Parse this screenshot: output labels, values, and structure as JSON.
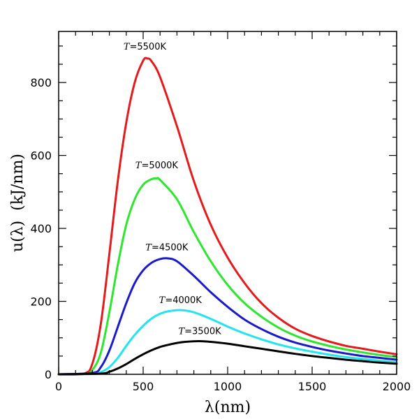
{
  "chart_data": {
    "type": "line",
    "xlabel": "λ(nm)",
    "ylabel": "u(λ)  (kJ/nm)",
    "xlim": [
      0,
      2000
    ],
    "ylim": [
      0,
      940
    ],
    "x_ticks": [
      0,
      500,
      1000,
      1500,
      2000
    ],
    "y_ticks": [
      0,
      200,
      400,
      600,
      800
    ],
    "grid": false,
    "legend": "none",
    "series": [
      {
        "label_var": "T",
        "label_value": "=5500K",
        "color": "#e41a1c",
        "x": [
          0,
          150,
          200,
          250,
          300,
          350,
          400,
          450,
          500,
          525,
          550,
          600,
          700,
          800,
          900,
          1000,
          1100,
          1200,
          1300,
          1400,
          1500,
          1600,
          1700,
          1800,
          1900,
          2000
        ],
        "y": [
          0,
          2,
          30,
          140,
          330,
          530,
          690,
          800,
          860,
          866,
          858,
          815,
          680,
          530,
          410,
          320,
          250,
          195,
          155,
          125,
          105,
          90,
          78,
          70,
          62,
          55
        ]
      },
      {
        "label_var": "T",
        "label_value": "=5000K",
        "color": "#2ee62e",
        "x": [
          0,
          150,
          200,
          250,
          300,
          350,
          400,
          450,
          500,
          550,
          580,
          600,
          700,
          800,
          900,
          1000,
          1100,
          1200,
          1300,
          1400,
          1500,
          1600,
          1700,
          1800,
          1900,
          2000
        ],
        "y": [
          0,
          1,
          12,
          60,
          170,
          300,
          410,
          480,
          520,
          535,
          537,
          533,
          480,
          390,
          310,
          245,
          195,
          158,
          128,
          106,
          90,
          78,
          68,
          60,
          53,
          47
        ]
      },
      {
        "label_var": "T",
        "label_value": "=4500K",
        "color": "#1a1acc",
        "x": [
          0,
          200,
          250,
          300,
          350,
          400,
          450,
          500,
          550,
          600,
          644,
          700,
          800,
          900,
          1000,
          1100,
          1200,
          1300,
          1400,
          1500,
          1600,
          1700,
          1800,
          1900,
          2000
        ],
        "y": [
          0,
          4,
          20,
          65,
          130,
          195,
          250,
          285,
          306,
          316,
          318,
          310,
          270,
          225,
          185,
          150,
          124,
          103,
          87,
          75,
          65,
          57,
          50,
          45,
          40
        ]
      },
      {
        "label_var": "T",
        "label_value": "=4000K",
        "color": "#22e5f0",
        "x": [
          0,
          200,
          250,
          300,
          350,
          400,
          450,
          500,
          550,
          600,
          650,
          724,
          800,
          900,
          1000,
          1100,
          1200,
          1300,
          1400,
          1500,
          1600,
          1700,
          1800,
          1900,
          2000
        ],
        "y": [
          0,
          1,
          6,
          20,
          45,
          78,
          108,
          133,
          153,
          166,
          173,
          176,
          170,
          152,
          131,
          112,
          96,
          82,
          71,
          62,
          54,
          47,
          42,
          37,
          33
        ]
      },
      {
        "label_var": "T",
        "label_value": "=3500K",
        "color": "#000000",
        "x": [
          0,
          250,
          300,
          350,
          400,
          450,
          500,
          550,
          600,
          650,
          700,
          750,
          830,
          900,
          1000,
          1100,
          1200,
          1300,
          1400,
          1500,
          1600,
          1700,
          1800,
          1900,
          2000
        ],
        "y": [
          0,
          2,
          7,
          16,
          28,
          42,
          55,
          66,
          75,
          81,
          86,
          89,
          91,
          89,
          84,
          77,
          70,
          63,
          56,
          50,
          45,
          40,
          36,
          32,
          29
        ]
      }
    ],
    "annotations": [
      {
        "series": 0,
        "x": 510,
        "y": 890
      },
      {
        "series": 1,
        "x": 580,
        "y": 565
      },
      {
        "series": 2,
        "x": 640,
        "y": 340
      },
      {
        "series": 3,
        "x": 720,
        "y": 195
      },
      {
        "series": 4,
        "x": 835,
        "y": 110
      }
    ]
  }
}
